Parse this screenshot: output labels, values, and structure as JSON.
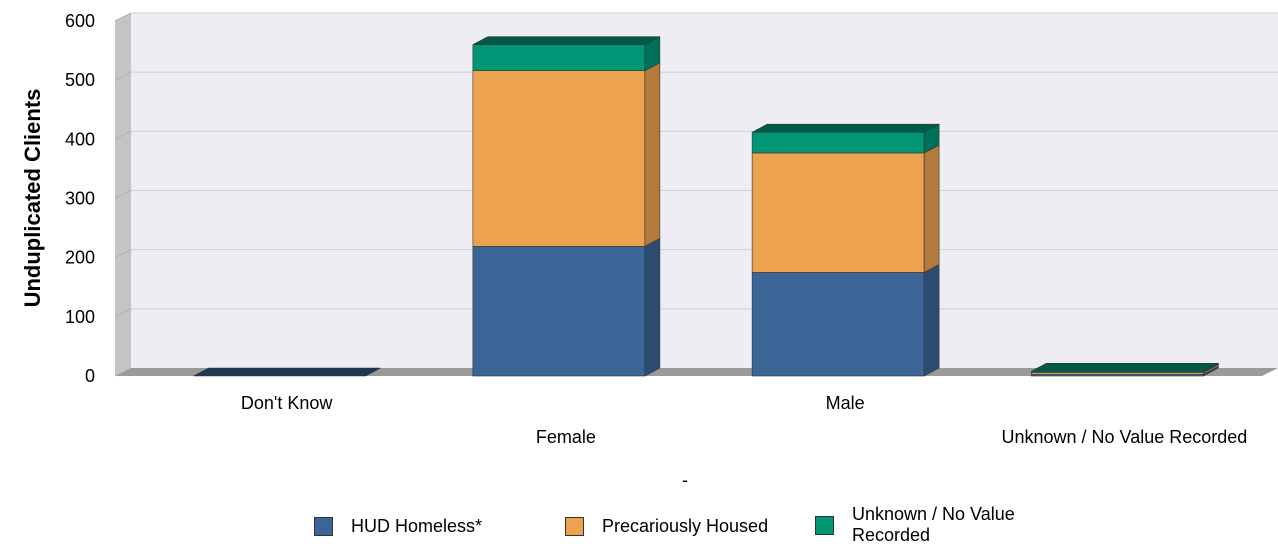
{
  "chart_data": {
    "type": "bar",
    "stacked": true,
    "three_d": true,
    "categories": [
      "Don't Know",
      "Female",
      "Male",
      "Unknown / No Value Recorded"
    ],
    "series": [
      {
        "name": "HUD Homeless*",
        "values": [
          0,
          219,
          175,
          3
        ],
        "color": "#3b6596"
      },
      {
        "name": "Precariously Housed",
        "values": [
          0,
          297,
          202,
          3
        ],
        "color": "#eda250"
      },
      {
        "name": "Unknown / No Value Recorded",
        "values": [
          0,
          44,
          35,
          2
        ],
        "color": "#009676"
      }
    ],
    "ylabel": "Unduplicated Clients",
    "xlabel": "-",
    "ylim": [
      0,
      600
    ],
    "yticks": [
      0,
      100,
      200,
      300,
      400,
      500,
      600
    ],
    "grid": true,
    "legend_position": "bottom"
  }
}
